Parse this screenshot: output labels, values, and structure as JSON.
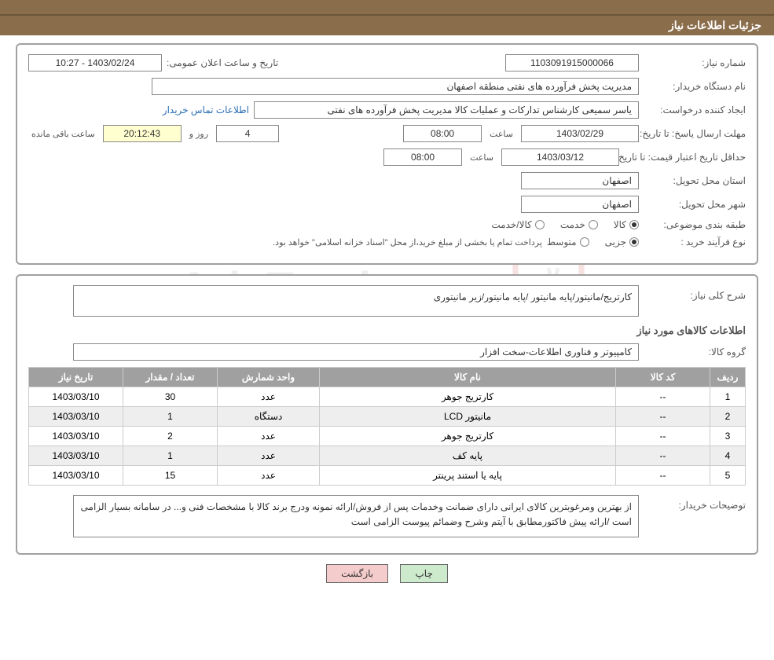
{
  "header": {
    "title": "جزئیات اطلاعات نیاز"
  },
  "section1": {
    "need_number_label": "شماره نیاز:",
    "need_number": "1103091915000066",
    "announce_label": "تاریخ و ساعت اعلان عمومی:",
    "announce_value": "1403/02/24 - 10:27",
    "buyer_label": "نام دستگاه خریدار:",
    "buyer_name": "مدیریت پخش فرآورده های نفتی منطقه اصفهان",
    "requester_label": "ایجاد کننده درخواست:",
    "requester_name": "یاسر  سمیعی کارشناس تدارکات و عملیات کالا مدیریت پخش فرآورده های نفتی",
    "contact_link": "اطلاعات تماس خریدار",
    "reply_deadline_label": "مهلت ارسال یاسخ: تا تاریخ:",
    "reply_deadline_date": "1403/02/29",
    "hour_label": "ساعت",
    "reply_deadline_time": "08:00",
    "day_and_label": "روز و",
    "days_left": "4",
    "hours_left": "20:12:43",
    "hours_remain_label": "ساعت باقی مانده",
    "min_validity_label": "حداقل تاریخ اعتبار قیمت: تا تاریخ:",
    "min_validity_date": "1403/03/12",
    "min_validity_time": "08:00",
    "province_label": "استان محل تحویل:",
    "province": "اصفهان",
    "city_label": "شهر محل تحویل:",
    "city": "اصفهان",
    "category_label": "طبقه بندی موضوعی:",
    "cat_goods": "کالا",
    "cat_service": "خدمت",
    "cat_goods_service": "کالا/خدمت",
    "process_label": "نوع فرآیند خرید :",
    "process_small": "جزیی",
    "process_medium": "متوسط",
    "process_desc": "پرداخت تمام یا بخشی از مبلغ خرید،از محل \"اسناد خزانه اسلامی\" خواهد بود."
  },
  "section2": {
    "need_desc_label": "شرح کلی نیاز:",
    "need_desc": "کارتریج/مانیتور/پایه مانیتور /پایه مانیتور/زیر مانیتوری",
    "items_title": "اطلاعات کالاهای مورد نیاز",
    "group_label": "گروه کالا:",
    "group_value": "کامپیوتر و فناوری اطلاعات-سخت افزار",
    "table": {
      "headers": {
        "idx": "ردیف",
        "code": "کد کالا",
        "name": "نام کالا",
        "unit": "واحد شمارش",
        "qty": "تعداد / مقدار",
        "date": "تاریخ نیاز"
      },
      "rows": [
        {
          "idx": "1",
          "code": "--",
          "name": "کارتریج جوهر",
          "unit": "عدد",
          "qty": "30",
          "date": "1403/03/10"
        },
        {
          "idx": "2",
          "code": "--",
          "name": "مانیتور LCD",
          "unit": "دستگاه",
          "qty": "1",
          "date": "1403/03/10"
        },
        {
          "idx": "3",
          "code": "--",
          "name": "کارتریج جوهر",
          "unit": "عدد",
          "qty": "2",
          "date": "1403/03/10"
        },
        {
          "idx": "4",
          "code": "--",
          "name": "پایه کف",
          "unit": "عدد",
          "qty": "1",
          "date": "1403/03/10"
        },
        {
          "idx": "5",
          "code": "--",
          "name": "پایه یا استند پرینتر",
          "unit": "عدد",
          "qty": "15",
          "date": "1403/03/10"
        }
      ]
    },
    "notes_label": "توضیحات خریدار:",
    "notes_text": "از بهترین ومرغوبترین کالای ایرانی دارای ضمانت وخدمات پس از فروش/ارائه نمونه ودرج برند کالا با مشخصات فنی و... در سامانه بسیار الزامی است /ارائه پیش فاکتورمطابق با آیتم وشرح وضمائم پیوست الزامی است"
  },
  "buttons": {
    "print": "چاپ",
    "back": "بازگشت"
  },
  "watermark_text": "AriaTender.net",
  "colors": {
    "header_bg": "#8a6d4b",
    "border": "#a0a0a0",
    "field_border": "#888888",
    "th_bg": "#a0a0a0",
    "row_alt": "#eeeeee",
    "btn_green": "#cdeacd",
    "btn_pink": "#f5cccc",
    "link": "#2a6fb5",
    "yellow": "#ffffd0"
  }
}
